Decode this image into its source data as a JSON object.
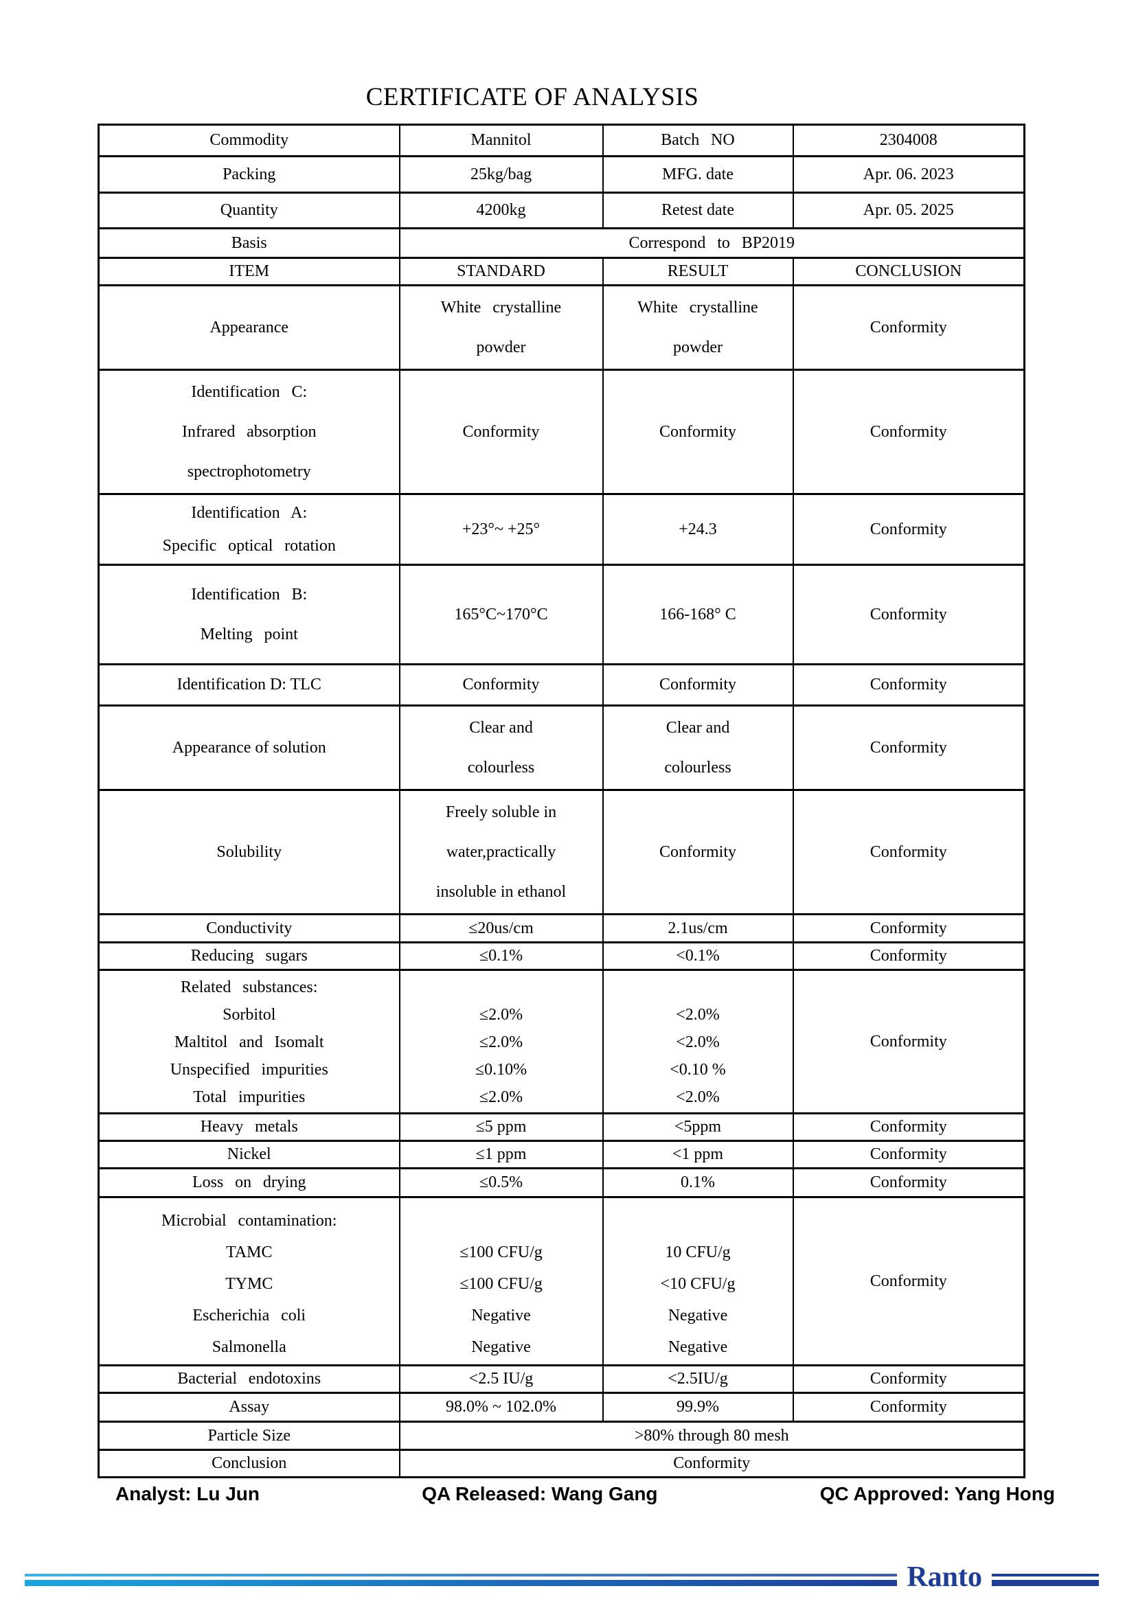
{
  "title": "CERTIFICATE OF ANALYSIS",
  "info": {
    "commodity_label": "Commodity",
    "commodity_value": "Mannitol",
    "batch_label": "Batch NO",
    "batch_value": "2304008",
    "packing_label": "Packing",
    "packing_value": "25kg/bag",
    "mfg_label": "MFG. date",
    "mfg_value": "Apr. 06. 2023",
    "quantity_label": "Quantity",
    "quantity_value": "4200kg",
    "retest_label": "Retest date",
    "retest_value": "Apr. 05. 2025",
    "basis_label": "Basis",
    "basis_value": "Correspond to BP2019"
  },
  "columns": [
    "ITEM",
    "STANDARD",
    "RESULT",
    "CONCLUSION"
  ],
  "rows": [
    {
      "item": "Appearance",
      "standard": "White crystalline\npowder",
      "result": "White crystalline\npowder",
      "conclusion": "Conformity"
    },
    {
      "item": "Identification C:\nInfrared absorption\nspectrophotometry",
      "standard": "Conformity",
      "result": "Conformity",
      "conclusion": "Conformity"
    },
    {
      "item": "Identification A:\nSpecific optical rotation",
      "standard": "+23°~ +25°",
      "result": "+24.3",
      "conclusion": "Conformity"
    },
    {
      "item": "Identification B:\nMelting point",
      "standard": "165°C~170°C",
      "result": "166-168° C",
      "conclusion": "Conformity"
    },
    {
      "item": "Identification D: TLC",
      "standard": "Conformity",
      "result": "Conformity",
      "conclusion": "Conformity"
    },
    {
      "item": "Appearance of solution",
      "standard": "Clear and\ncolourless",
      "result": "Clear and\ncolourless",
      "conclusion": "Conformity"
    },
    {
      "item": "Solubility",
      "standard": "Freely soluble in\nwater,practically\ninsoluble in ethanol",
      "result": "Conformity",
      "conclusion": "Conformity"
    },
    {
      "item": "Conductivity",
      "standard": "≤20us/cm",
      "result": "2.1us/cm",
      "conclusion": "Conformity"
    },
    {
      "item": "Reducing sugars",
      "standard": "≤0.1%",
      "result": "<0.1%",
      "conclusion": "Conformity"
    },
    {
      "item": "Related substances:\nSorbitol\nMaltitol and Isomalt\nUnspecified impurities\nTotal impurities",
      "standard": "≤2.0%\n≤2.0%\n≤0.10%\n≤2.0%",
      "result": "<2.0%\n<2.0%\n<0.10 %\n<2.0%",
      "conclusion": "Conformity"
    },
    {
      "item": "Heavy metals",
      "standard": "≤5 ppm",
      "result": "<5ppm",
      "conclusion": "Conformity"
    },
    {
      "item": "Nickel",
      "standard": "≤1 ppm",
      "result": "<1 ppm",
      "conclusion": "Conformity"
    },
    {
      "item": "Loss on drying",
      "standard": "≤0.5%",
      "result": "0.1%",
      "conclusion": "Conformity"
    },
    {
      "item": "Microbial contamination:\nTAMC\nTYMC\nEscherichia coli\nSalmonella",
      "standard": "≤100 CFU/g\n≤100 CFU/g\nNegative\nNegative",
      "result": "10 CFU/g\n<10 CFU/g\nNegative\nNegative",
      "conclusion": "Conformity"
    },
    {
      "item": "Bacterial endotoxins",
      "standard": "<2.5 IU/g",
      "result": "<2.5IU/g",
      "conclusion": "Conformity"
    },
    {
      "item": "Assay",
      "standard": "98.0% ~ 102.0%",
      "result": "99.9%",
      "conclusion": "Conformity"
    }
  ],
  "particle_size": {
    "label": "Particle Size",
    "value": ">80% through 80 mesh"
  },
  "final_conclusion": {
    "label": "Conclusion",
    "value": "Conformity"
  },
  "signatures": {
    "analyst": "Analyst: Lu Jun",
    "qa_released": "QA Released: Wang Gang",
    "qc_approved": "QC Approved: Yang Hong"
  },
  "brand": {
    "name": "Ranto",
    "text_color": "#1e3d96",
    "line_gradient_start": "#1ba6e0",
    "line_gradient_end": "#1e3f97"
  }
}
